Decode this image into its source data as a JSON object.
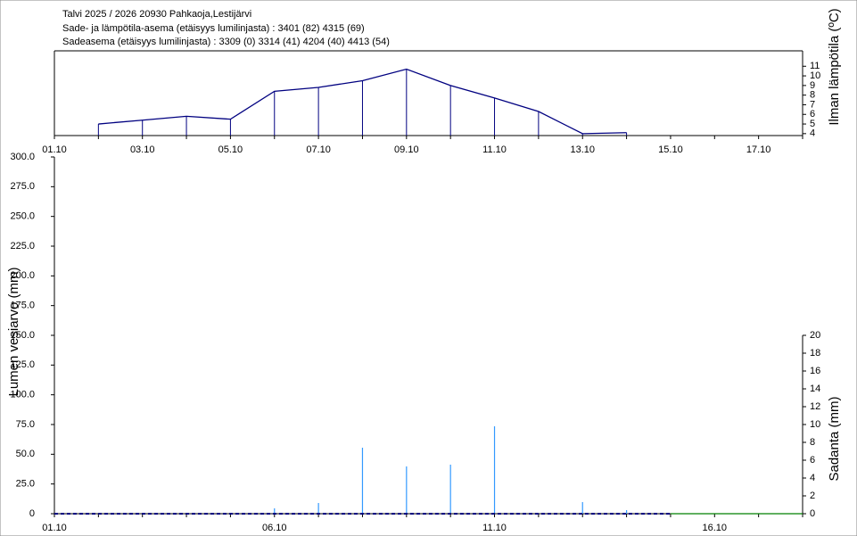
{
  "header": {
    "lines": [
      "Talvi 2025 / 2026 20930 Pahkaoja,Lestijärvi",
      "Sade- ja lämpötila-asema (etäisyys lumilinjasta) :  3401 (82) 4315 (69)",
      "Sadeasema (etäisyys lumilinjasta) :  3309 (0) 3314 (41) 4204 (40) 4413 (54)"
    ]
  },
  "chart_data": [
    {
      "type": "line",
      "y_label": "Ilman lämpötila (ºC)",
      "categories": [
        "01.10",
        null,
        "03.10",
        null,
        "05.10",
        null,
        "07.10",
        null,
        "09.10",
        null,
        "11.10",
        null,
        "13.10",
        null,
        "15.10",
        null,
        "17.10",
        null
      ],
      "values": [
        null,
        5.0,
        5.4,
        5.8,
        5.5,
        8.4,
        8.8,
        9.5,
        10.7,
        9.0,
        7.7,
        6.3,
        4.0,
        4.1,
        null,
        null,
        null,
        null
      ],
      "color": "#000080",
      "ylim": [
        3.8,
        12.6
      ],
      "yticks": [
        4,
        5,
        6,
        7,
        8,
        9,
        10,
        11
      ]
    },
    {
      "type": "bar",
      "y_label": "Lumen vesiarvo (mm)",
      "y2_label": "Sadanta (mm)",
      "categories": [
        "01.10",
        null,
        null,
        null,
        null,
        "06.10",
        null,
        null,
        null,
        null,
        "11.10",
        null,
        null,
        null,
        null,
        "16.10",
        null,
        null
      ],
      "series": [
        {
          "type": "bar",
          "axis": "y2",
          "color": "#3399ff",
          "values": [
            0,
            0,
            0,
            0,
            0,
            0.6,
            1.2,
            7.4,
            5.3,
            5.5,
            9.8,
            0,
            1.3,
            0.4,
            0,
            0,
            0,
            0
          ]
        },
        {
          "type": "line",
          "dashed": true,
          "color": "#000080",
          "values": [
            0,
            0,
            0,
            0,
            0,
            0,
            0,
            0,
            0,
            0,
            0,
            0,
            0,
            0,
            0,
            null,
            null,
            null
          ]
        },
        {
          "type": "line",
          "color": "#008000",
          "values": [
            null,
            null,
            null,
            null,
            null,
            null,
            null,
            null,
            null,
            null,
            null,
            null,
            null,
            null,
            0,
            0,
            0,
            0
          ]
        }
      ],
      "ylim": [
        0,
        300
      ],
      "yticks": [
        0,
        {
          "value": 25,
          "label": "25.0"
        },
        {
          "value": 50,
          "label": "50.0"
        },
        {
          "value": 75,
          "label": "75.0"
        },
        {
          "value": 100,
          "label": "100.0"
        },
        {
          "value": 125,
          "label": "125.0"
        },
        {
          "value": 150,
          "label": "150.0"
        },
        {
          "value": 175,
          "label": "175.0"
        },
        {
          "value": 200,
          "label": "200.0"
        },
        {
          "value": 225,
          "label": "225.0"
        },
        {
          "value": 250,
          "label": "250.0"
        },
        {
          "value": 275,
          "label": "275.0"
        },
        {
          "value": 300,
          "label": "300.0"
        }
      ],
      "y2lim": [
        0,
        40
      ],
      "y2ticks": [
        0,
        2,
        4,
        6,
        8,
        10,
        12,
        14,
        16,
        18,
        20
      ]
    }
  ]
}
